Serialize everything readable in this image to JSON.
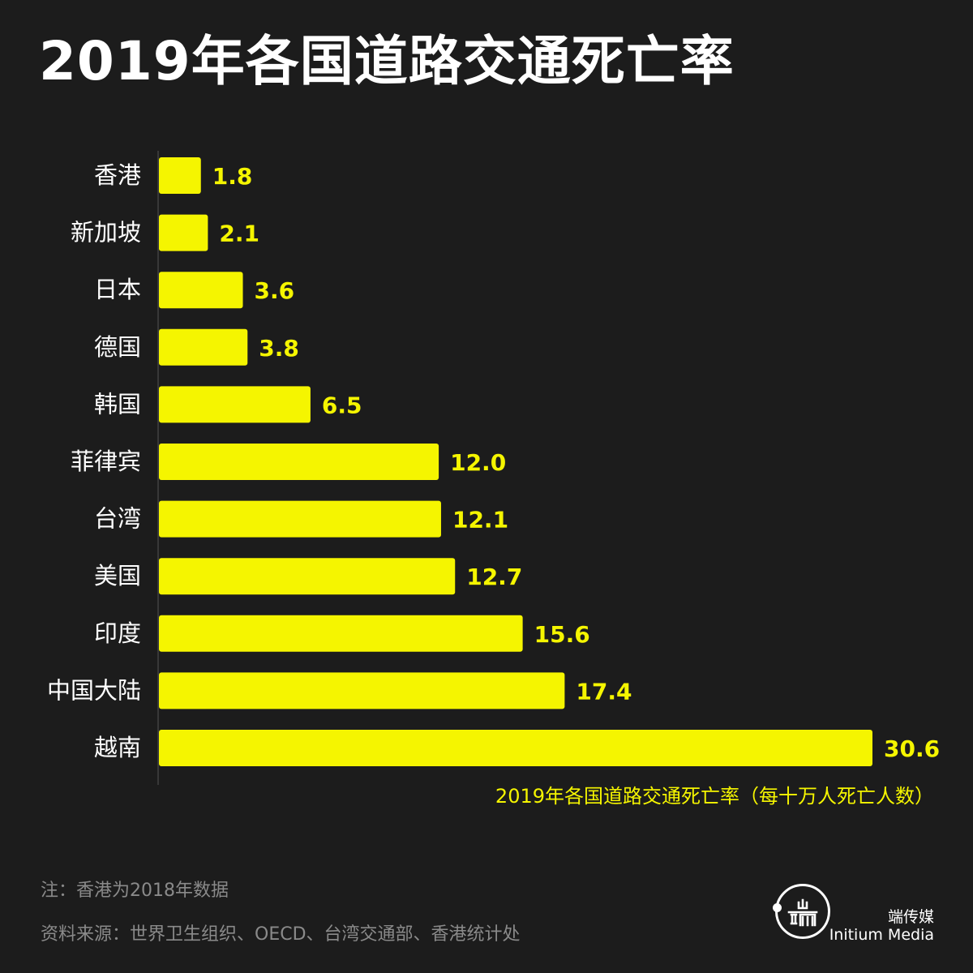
{
  "title": "2019年各国道路交通死亡率",
  "colors": {
    "background": "#1c1c1c",
    "bar": "#f5f500",
    "value_label": "#f5f500",
    "category_label": "#ffffff",
    "axis": "#555555",
    "footnote": "#8a8a8a"
  },
  "chart_data": {
    "type": "bar",
    "orientation": "horizontal",
    "categories": [
      "香港",
      "新加坡",
      "日本",
      "德国",
      "韩国",
      "菲律宾",
      "台湾",
      "美国",
      "印度",
      "中国大陆",
      "越南"
    ],
    "values": [
      1.8,
      2.1,
      3.6,
      3.8,
      6.5,
      12.0,
      12.1,
      12.7,
      15.6,
      17.4,
      30.6
    ],
    "value_labels": [
      "1.8",
      "2.1",
      "3.6",
      "3.8",
      "6.5",
      "12.0",
      "12.1",
      "12.7",
      "15.6",
      "17.4",
      "30.6"
    ],
    "xlabel": "2019年各国道路交通死亡率（每十万人死亡人数）",
    "xlim": [
      0,
      30.6
    ],
    "grid": false,
    "legend": "none"
  },
  "footnotes": {
    "note": "注：香港为2018年数据",
    "source": "资料来源：世界卫生组织、OECD、台湾交通部、香港统计处"
  },
  "brand": {
    "icon": "initium-logo-icon",
    "name_cn": "端传媒",
    "name_en": "Initium Media"
  }
}
